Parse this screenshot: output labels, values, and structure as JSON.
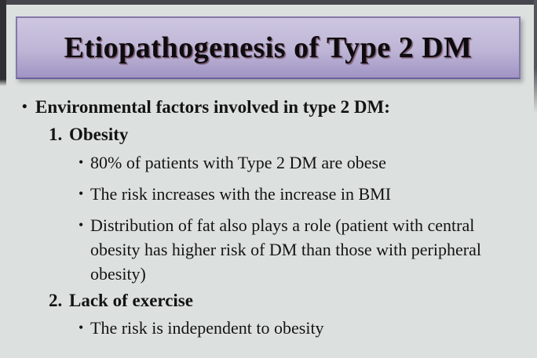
{
  "slide": {
    "title": "Etiopathogenesis of Type 2 DM"
  },
  "content": {
    "items": [
      {
        "marker": "•",
        "text": "Environmental factors involved in type 2 DM:"
      },
      {
        "marker": "1.",
        "text": "Obesity"
      },
      {
        "marker": "•",
        "text": "80% of patients with Type 2 DM are obese"
      },
      {
        "marker": "•",
        "text": "The risk increases with the increase in BMI"
      },
      {
        "marker": "•",
        "text": "Distribution of fat also plays a role (patient with central obesity has higher risk of DM than those with peripheral obesity)"
      },
      {
        "marker": "2.",
        "text": "Lack of exercise"
      },
      {
        "marker": "•",
        "text": "The risk is independent to obesity"
      }
    ]
  },
  "colors": {
    "bg": "#dce1df",
    "title-grad-top": "#cdc7e0",
    "title-grad-bottom": "#a094c4",
    "title-border": "#8578a8",
    "title-border-dark": "#69609b",
    "text": "#131313",
    "bar-top": "#47464e",
    "bar-left": "#303034",
    "bar-right": "#55545c"
  }
}
